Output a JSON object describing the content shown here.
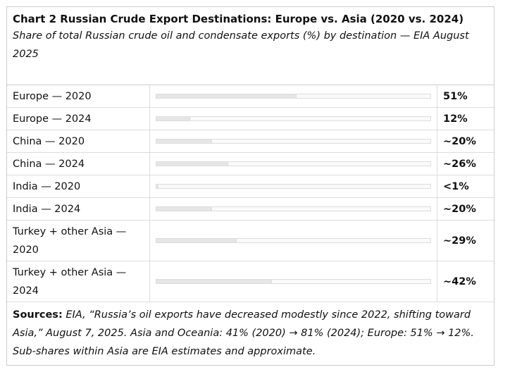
{
  "chart_data": {
    "type": "bar",
    "title": "Chart 2  Russian Crude Export Destinations: Europe vs. Asia (2020 vs. 2024)",
    "subtitle": "Share of total Russian crude oil and condensate exports (%) by destination — EIA August 2025",
    "categories": [
      "Europe — 2020",
      "Europe — 2024",
      "China — 2020",
      "China — 2024",
      "India — 2020",
      "India — 2024",
      "Turkey + other Asia — 2020",
      "Turkey + other Asia — 2024"
    ],
    "values": [
      51,
      12,
      20,
      26,
      0.5,
      20,
      29,
      42
    ],
    "value_labels": [
      "51%",
      "12%",
      "~20%",
      "~26%",
      "<1%",
      "~20%",
      "~29%",
      "~42%"
    ],
    "xlim": [
      0,
      100
    ],
    "color": "#e6e6e6",
    "source_label": "Sources:",
    "source_text": "EIA, “Russia’s oil exports have decreased modestly since 2022, shifting toward Asia,” August 7, 2025. Asia and Oceania: 41% (2020) → 81% (2024); Europe: 51% → 12%. Sub-shares within Asia are EIA estimates and approximate."
  }
}
